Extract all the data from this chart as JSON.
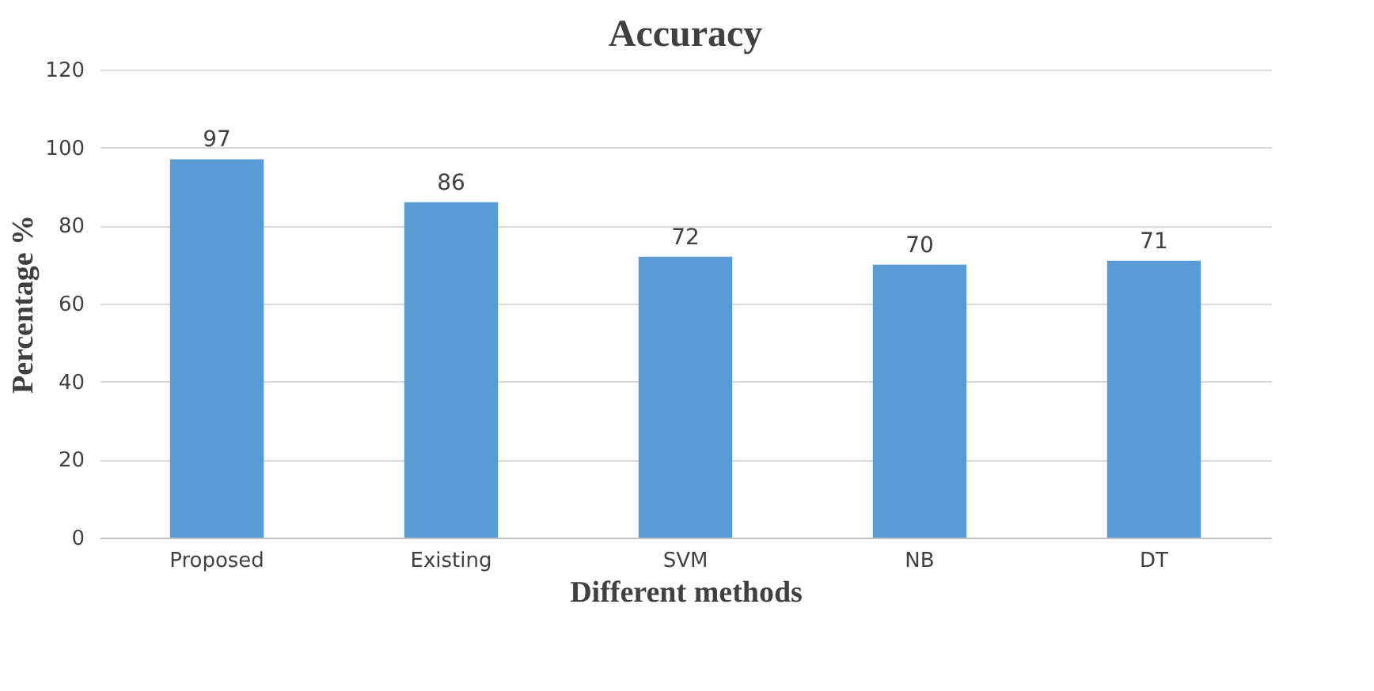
{
  "chart_data": {
    "type": "bar",
    "title": "Accuracy",
    "xlabel": "Different methods",
    "ylabel": "Percentage %",
    "categories": [
      "Proposed",
      "Existing",
      "SVM",
      "NB",
      "DT"
    ],
    "values": [
      97,
      86,
      72,
      70,
      71
    ],
    "color": "#5b9bd5",
    "ylim": [
      0,
      120
    ],
    "yticks": [
      0,
      20,
      40,
      60,
      80,
      100,
      120
    ],
    "grid": "y",
    "data_labels": true
  }
}
